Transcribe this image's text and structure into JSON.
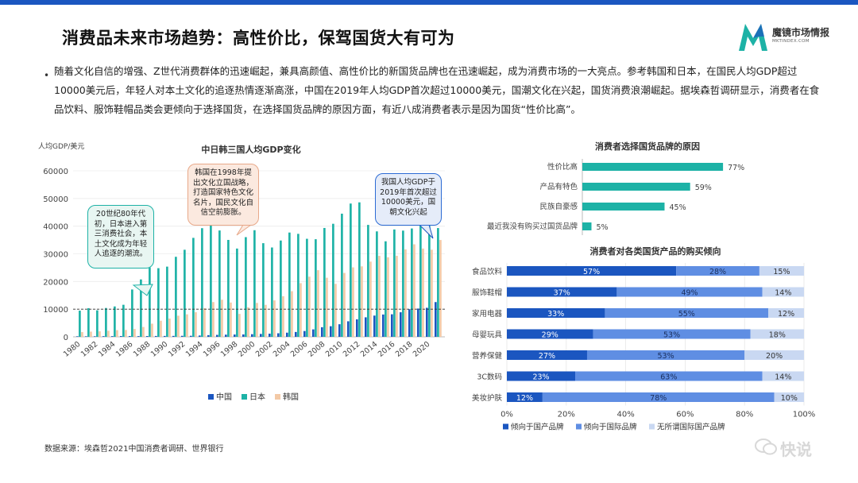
{
  "header": {
    "title": "消费品未来市场趋势：高性价比，保驾国货大有可为",
    "logo_name": "魔镜市场情报",
    "logo_url": "MKTINDEX.COM"
  },
  "bullet": {
    "text": "随着文化自信的增强、Z世代消费群体的迅速崛起，兼具高颜值、高性价比的新国货品牌也在迅速崛起，成为消费市场的一大亮点。参考韩国和日本，在国民人均GDP超过10000美元后，年轻人对本土文化的追逐热情逐渐高涨，中国在2019年人均GDP首次超过10000美元，国潮文化在兴起，国货消费浪潮崛起。据埃森哲调研显示，消费者在食品饮料、服饰鞋帽品类会更倾向于选择国货，在选择国货品牌的原因方面，有近八成消费者表示是因为国货“性价比高”。"
  },
  "callouts": {
    "c1": "20世纪80年代初，日本进入第三消费社会，本土文化成为年轻人追逐的潮流。",
    "c2": "韩国在1998年提出文化立国战略，打造国家特色文化名片，国民文化自信空前膨胀。",
    "c3": "我国人均GDP于2019年首次超过10000美元，国朝文化兴起"
  },
  "source": "数据来源：埃森哲2021中国消费者调研、世界银行",
  "watermark": "快说",
  "colors": {
    "china": "#1b56c0",
    "japan": "#1db2a6",
    "korea": "#f3c9a6",
    "accent": "#1db2a6",
    "stack_domestic": "#1b56c0",
    "stack_intl": "#5f8ee3",
    "stack_none": "#c9d8f2"
  },
  "chart_data": [
    {
      "type": "bar",
      "title": "中日韩三国人均GDP变化",
      "ylabel": "人均GDP/美元",
      "xlabel": "",
      "ylim": [
        0,
        60000
      ],
      "yticks": [
        "0",
        "10000",
        "20000",
        "30000",
        "40000",
        "50000",
        "60000"
      ],
      "reference_line": 10000,
      "categories": [
        "1980",
        "1981",
        "1982",
        "1983",
        "1984",
        "1985",
        "1986",
        "1987",
        "1988",
        "1989",
        "1990",
        "1991",
        "1992",
        "1993",
        "1994",
        "1995",
        "1996",
        "1997",
        "1998",
        "1999",
        "2000",
        "2001",
        "2002",
        "2003",
        "2004",
        "2005",
        "2006",
        "2007",
        "2008",
        "2009",
        "2010",
        "2011",
        "2012",
        "2013",
        "2014",
        "2015",
        "2016",
        "2017",
        "2018",
        "2019",
        "2020",
        "2021"
      ],
      "xtick_labels": [
        "1980",
        "1982",
        "1984",
        "1986",
        "1988",
        "1990",
        "1992",
        "1994",
        "1996",
        "1998",
        "2000",
        "2002",
        "2004",
        "2006",
        "2008",
        "2010",
        "2012",
        "2014",
        "2016",
        "2018",
        "2020"
      ],
      "series": [
        {
          "name": "中国",
          "values": [
            195,
            197,
            203,
            237,
            251,
            294,
            282,
            252,
            283,
            311,
            318,
            334,
            366,
            377,
            473,
            609,
            709,
            782,
            829,
            873,
            959,
            1053,
            1149,
            1289,
            1509,
            1753,
            2099,
            2694,
            3468,
            3832,
            4550,
            5618,
            6317,
            7051,
            7679,
            8067,
            8148,
            8879,
            9977,
            10217,
            10500,
            12556
          ]
        },
        {
          "name": "日本",
          "values": [
            9463,
            10361,
            9578,
            10425,
            10984,
            11585,
            17113,
            20745,
            25051,
            24813,
            25371,
            28925,
            31465,
            35766,
            39269,
            43440,
            38437,
            35022,
            31903,
            36027,
            38532,
            33846,
            32289,
            34808,
            37689,
            37218,
            35434,
            35275,
            39339,
            40855,
            44508,
            48168,
            48603,
            40454,
            38109,
            34524,
            38794,
            38387,
            39159,
            40247,
            40113,
            39312
          ]
        },
        {
          "name": "韩国",
          "values": [
            1715,
            1883,
            1993,
            2199,
            2413,
            2482,
            2835,
            3555,
            4749,
            5817,
            6610,
            7637,
            8127,
            8885,
            10385,
            12565,
            13403,
            12398,
            8282,
            10672,
            12257,
            11561,
            13165,
            14673,
            16496,
            19402,
            21743,
            24086,
            21350,
            19144,
            23087,
            25096,
            25467,
            27182,
            29253,
            28737,
            29280,
            31601,
            33436,
            31902,
            31489,
            34998
          ]
        }
      ]
    },
    {
      "type": "bar",
      "orientation": "horizontal",
      "title": "消费者选择国货品牌的原因",
      "categories": [
        "性价比高",
        "产品有特色",
        "民族自豪感",
        "最近我没有购买过国货品牌"
      ],
      "values": [
        77,
        59,
        45,
        5
      ],
      "value_labels": [
        "77%",
        "59%",
        "45%",
        "5%"
      ],
      "unit": "%"
    },
    {
      "type": "bar",
      "orientation": "horizontal",
      "stacked": true,
      "title": "消费者对各类国货产品的购买倾向",
      "categories": [
        "食品饮料",
        "服饰鞋帽",
        "家用电器",
        "母婴玩具",
        "营养保健",
        "3C数码",
        "美妆护肤"
      ],
      "series": [
        {
          "name": "倾向于国产品牌",
          "values": [
            57,
            37,
            33,
            29,
            27,
            23,
            12
          ]
        },
        {
          "name": "倾向于国际品牌",
          "values": [
            28,
            49,
            55,
            53,
            53,
            63,
            78
          ]
        },
        {
          "name": "无所谓国际国产品牌",
          "values": [
            15,
            14,
            12,
            18,
            20,
            14,
            10
          ]
        }
      ],
      "xlim": [
        0,
        100
      ],
      "xticks": [
        "0%",
        "20%",
        "40%",
        "60%",
        "80%",
        "100%"
      ]
    }
  ]
}
